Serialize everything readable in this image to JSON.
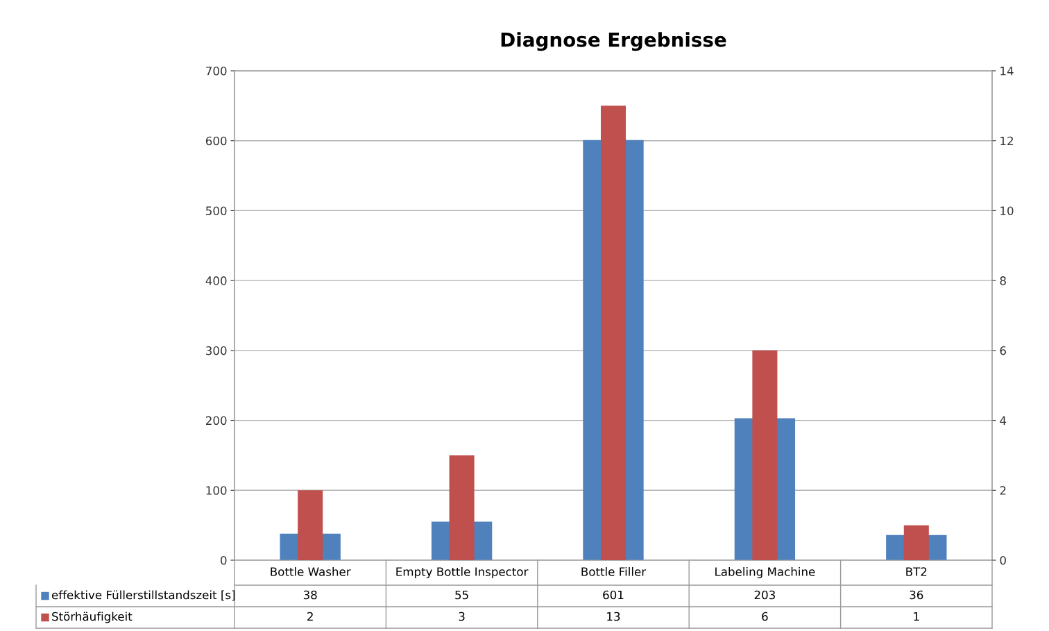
{
  "chart_data": {
    "type": "bar",
    "title": "Diagnose Ergebnisse",
    "categories": [
      "Bottle Washer",
      "Empty Bottle Inspector",
      "Bottle Filler",
      "Labeling Machine",
      "BT2"
    ],
    "series": [
      {
        "name": "effektive Füllerstillstandszeit [s]",
        "color": "#4f81bd",
        "values": [
          38,
          55,
          601,
          203,
          36
        ]
      },
      {
        "name": "Störhäufigkeit",
        "color": "#c0504d",
        "values": [
          2,
          3,
          13,
          6,
          1
        ],
        "axis": "y2"
      }
    ],
    "ylim": [
      0,
      700
    ],
    "yticks": [
      0,
      100,
      200,
      300,
      400,
      500,
      600,
      700
    ],
    "y2lim": [
      0,
      14
    ],
    "y2ticks": [
      0,
      2,
      4,
      6,
      8,
      10,
      12,
      14
    ],
    "grid": "y",
    "legend": "bottom",
    "data_labels": true
  }
}
